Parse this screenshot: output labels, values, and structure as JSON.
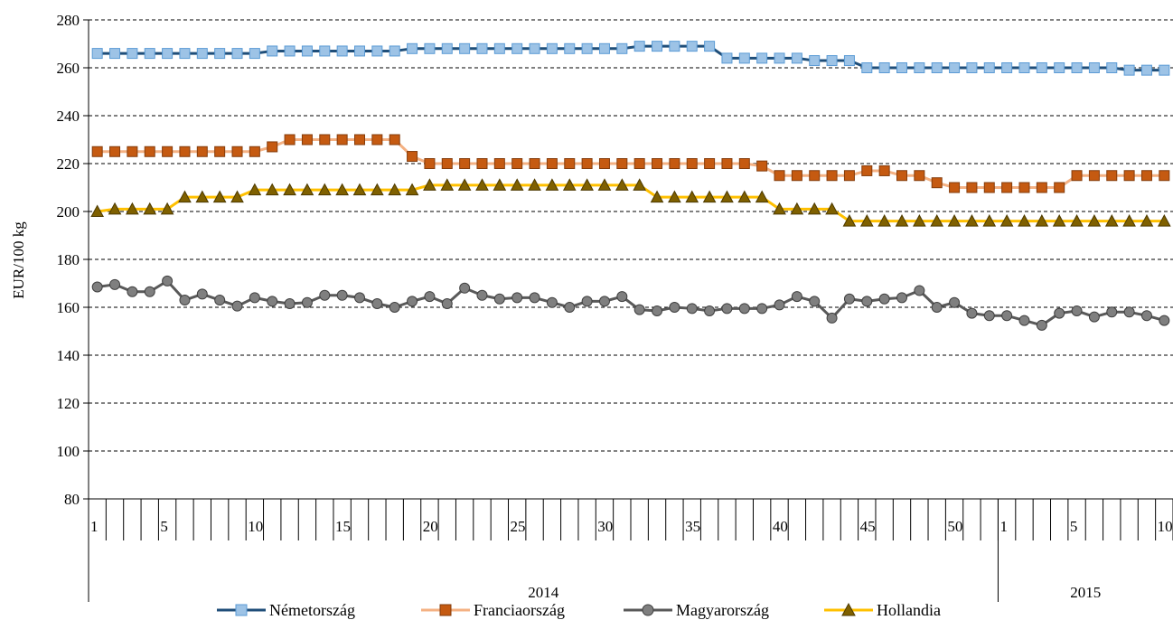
{
  "chart_data": {
    "type": "line",
    "ylabel": "EUR/100 kg",
    "ylim": [
      80,
      280
    ],
    "yticks": [
      80,
      100,
      120,
      140,
      160,
      180,
      200,
      220,
      240,
      260,
      280
    ],
    "grid": "horizontal-dashed",
    "legend_position": "bottom",
    "week_labels": [
      "1",
      "",
      "",
      "",
      "5",
      "",
      "",
      "",
      "",
      "10",
      "",
      "",
      "",
      "",
      "15",
      "",
      "",
      "",
      "",
      "20",
      "",
      "",
      "",
      "",
      "25",
      "",
      "",
      "",
      "",
      "30",
      "",
      "",
      "",
      "",
      "35",
      "",
      "",
      "",
      "",
      "40",
      "",
      "",
      "",
      "",
      "45",
      "",
      "",
      "",
      "",
      "50",
      "",
      "",
      "1",
      "",
      "",
      "",
      "5",
      "",
      "",
      "",
      "",
      "10"
    ],
    "years": [
      {
        "label": "2014",
        "start": 0,
        "count": 52
      },
      {
        "label": "2015",
        "start": 52,
        "count": 10
      }
    ],
    "series": [
      {
        "name": "Németország",
        "color": "#1F4E79",
        "marker_fill": "#9DC3E6",
        "marker_stroke": "#5B9BD5",
        "marker": "square",
        "values": [
          266,
          266,
          266,
          266,
          266,
          266,
          266,
          266,
          266,
          266,
          267,
          267,
          267,
          267,
          267,
          267,
          267,
          267,
          268,
          268,
          268,
          268,
          268,
          268,
          268,
          268,
          268,
          268,
          268,
          268,
          268,
          269,
          269,
          269,
          269,
          269,
          264,
          264,
          264,
          264,
          264,
          263,
          263,
          263,
          260,
          260,
          260,
          260,
          260,
          260,
          260,
          260,
          260,
          260,
          260,
          260,
          260,
          260,
          260,
          259,
          259,
          259
        ]
      },
      {
        "name": "Franciaország",
        "color": "#F4B183",
        "marker_fill": "#C55A11",
        "marker_stroke": "#843C0C",
        "marker": "square",
        "values": [
          225,
          225,
          225,
          225,
          225,
          225,
          225,
          225,
          225,
          225,
          227,
          230,
          230,
          230,
          230,
          230,
          230,
          230,
          223,
          220,
          220,
          220,
          220,
          220,
          220,
          220,
          220,
          220,
          220,
          220,
          220,
          220,
          220,
          220,
          220,
          220,
          220,
          220,
          219,
          215,
          215,
          215,
          215,
          215,
          217,
          217,
          215,
          215,
          212,
          210,
          210,
          210,
          210,
          210,
          210,
          210,
          215,
          215,
          215,
          215,
          215,
          215
        ]
      },
      {
        "name": "Magyarország",
        "color": "#595959",
        "marker_fill": "#7F7F7F",
        "marker_stroke": "#404040",
        "marker": "circle",
        "values": [
          168.5,
          169.5,
          166.5,
          166.5,
          171,
          163,
          165.5,
          163,
          160.5,
          164,
          162.5,
          161.5,
          162,
          165,
          165,
          164,
          161.5,
          160,
          162.5,
          164.5,
          161.5,
          168,
          165,
          163.5,
          164,
          164,
          162,
          160,
          162.5,
          162.5,
          164.5,
          159,
          158.5,
          160,
          159.5,
          158.5,
          159.5,
          159.5,
          159.5,
          161,
          164.5,
          162.5,
          155.5,
          163.5,
          162.5,
          163.5,
          164,
          167,
          160,
          162,
          157.5,
          156.5,
          156.5,
          154.5,
          152.5,
          157.5,
          158.5,
          156,
          158,
          158,
          156.5,
          154.5
        ]
      },
      {
        "name": "Hollandia",
        "color": "#FFC000",
        "marker_fill": "#7F6000",
        "marker_stroke": "#4D3A00",
        "marker": "triangle",
        "values": [
          200,
          201,
          201,
          201,
          201,
          206,
          206,
          206,
          206,
          209,
          209,
          209,
          209,
          209,
          209,
          209,
          209,
          209,
          209,
          211,
          211,
          211,
          211,
          211,
          211,
          211,
          211,
          211,
          211,
          211,
          211,
          211,
          206,
          206,
          206,
          206,
          206,
          206,
          206,
          201,
          201,
          201,
          201,
          196,
          196,
          196,
          196,
          196,
          196,
          196,
          196,
          196,
          196,
          196,
          196,
          196,
          196,
          196,
          196,
          196,
          196,
          196
        ]
      }
    ]
  }
}
